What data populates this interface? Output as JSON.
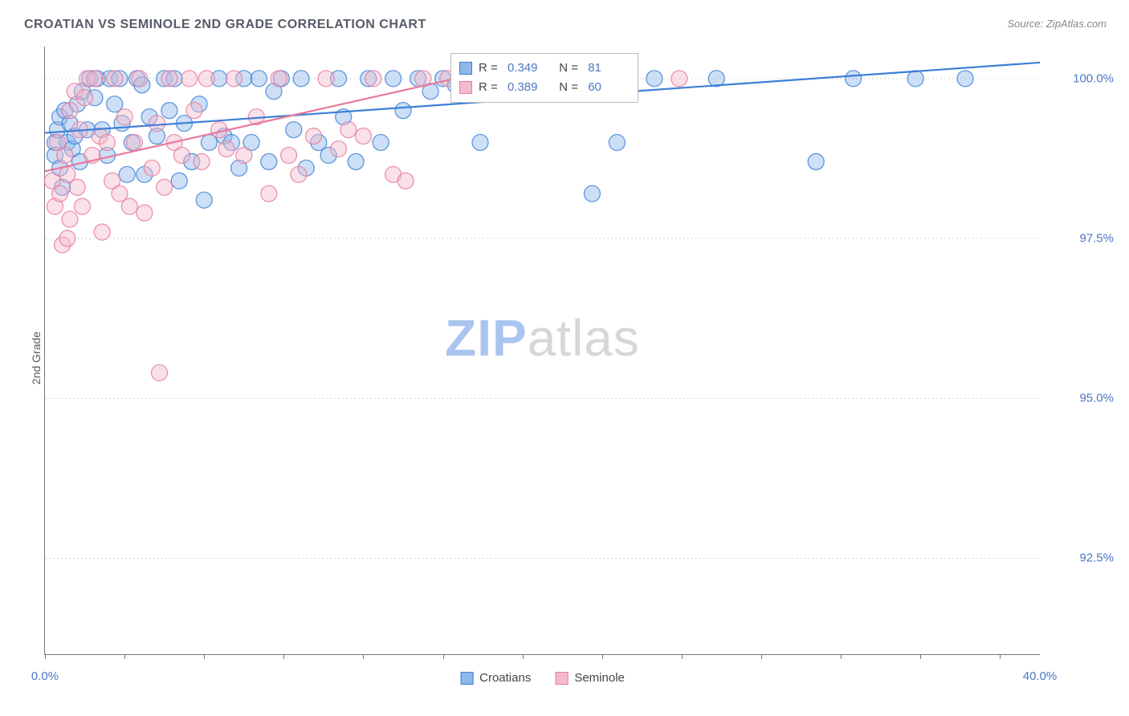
{
  "title": "CROATIAN VS SEMINOLE 2ND GRADE CORRELATION CHART",
  "source": "Source: ZipAtlas.com",
  "ylabel": "2nd Grade",
  "watermark": {
    "bold": "ZIP",
    "rest": "atlas",
    "bold_color": "#a9c5ef",
    "rest_color": "#d7d7d7"
  },
  "colors": {
    "blue_fill": "#8eb7ea",
    "blue_stroke": "#3d7fd6",
    "pink_fill": "#f4bacd",
    "pink_stroke": "#e77a9d",
    "axis_label": "#4b78c4",
    "grid": "#d6d6d6",
    "text": "#555c66"
  },
  "chart": {
    "type": "scatter",
    "xlim": [
      0,
      40
    ],
    "ylim": [
      91,
      100.5
    ],
    "xticks": [
      0,
      3.2,
      6.4,
      9.6,
      12.8,
      16,
      19.2,
      22.4,
      25.6,
      28.8,
      32,
      35.2,
      38.4
    ],
    "xtick_labels_shown": {
      "0": "0.0%",
      "40": "40.0%"
    },
    "yticks": [
      92.5,
      95.0,
      97.5,
      100.0
    ],
    "ytick_labels": [
      "92.5%",
      "95.0%",
      "97.5%",
      "100.0%"
    ],
    "marker_radius": 10,
    "marker_opacity": 0.45,
    "line_width": 2.2
  },
  "series": [
    {
      "name": "Croatians",
      "color_fill": "#8eb7ea",
      "color_stroke": "#3d7fd6",
      "R": "0.349",
      "N": "81",
      "regression": {
        "x0": 0,
        "y0": 99.15,
        "x1": 40,
        "y1": 100.25
      },
      "points": [
        [
          0.4,
          99.0
        ],
        [
          0.4,
          98.8
        ],
        [
          0.5,
          99.2
        ],
        [
          0.6,
          98.6
        ],
        [
          0.6,
          99.4
        ],
        [
          0.7,
          98.3
        ],
        [
          0.8,
          99.5
        ],
        [
          0.9,
          99.0
        ],
        [
          1.0,
          99.3
        ],
        [
          1.1,
          98.9
        ],
        [
          1.2,
          99.1
        ],
        [
          1.3,
          99.6
        ],
        [
          1.4,
          98.7
        ],
        [
          1.5,
          99.8
        ],
        [
          1.7,
          99.2
        ],
        [
          1.8,
          100.0
        ],
        [
          2.0,
          99.7
        ],
        [
          2.1,
          100.0
        ],
        [
          2.3,
          99.2
        ],
        [
          2.5,
          98.8
        ],
        [
          2.6,
          100.0
        ],
        [
          2.8,
          99.6
        ],
        [
          3.0,
          100.0
        ],
        [
          3.1,
          99.3
        ],
        [
          3.3,
          98.5
        ],
        [
          3.5,
          99.0
        ],
        [
          3.7,
          100.0
        ],
        [
          3.9,
          99.9
        ],
        [
          4.0,
          98.5
        ],
        [
          4.2,
          99.4
        ],
        [
          4.5,
          99.1
        ],
        [
          4.8,
          100.0
        ],
        [
          5.0,
          99.5
        ],
        [
          5.2,
          100.0
        ],
        [
          5.4,
          98.4
        ],
        [
          5.6,
          99.3
        ],
        [
          5.9,
          98.7
        ],
        [
          6.2,
          99.6
        ],
        [
          6.4,
          98.1
        ],
        [
          6.6,
          99.0
        ],
        [
          7.0,
          100.0
        ],
        [
          7.2,
          99.1
        ],
        [
          7.5,
          99.0
        ],
        [
          7.8,
          98.6
        ],
        [
          8.0,
          100.0
        ],
        [
          8.3,
          99.0
        ],
        [
          8.6,
          100.0
        ],
        [
          9.0,
          98.7
        ],
        [
          9.2,
          99.8
        ],
        [
          9.5,
          100.0
        ],
        [
          10.0,
          99.2
        ],
        [
          10.3,
          100.0
        ],
        [
          10.5,
          98.6
        ],
        [
          11.0,
          99.0
        ],
        [
          11.4,
          98.8
        ],
        [
          11.8,
          100.0
        ],
        [
          12.0,
          99.4
        ],
        [
          12.5,
          98.7
        ],
        [
          13.0,
          100.0
        ],
        [
          13.5,
          99.0
        ],
        [
          14.0,
          100.0
        ],
        [
          14.4,
          99.5
        ],
        [
          15.0,
          100.0
        ],
        [
          15.5,
          99.8
        ],
        [
          16.0,
          100.0
        ],
        [
          16.5,
          99.9
        ],
        [
          17.0,
          100.0
        ],
        [
          17.5,
          99.0
        ],
        [
          18.0,
          100.0
        ],
        [
          19.0,
          100.0
        ],
        [
          20.0,
          99.8
        ],
        [
          20.5,
          100.0
        ],
        [
          21.2,
          100.0
        ],
        [
          22.0,
          98.2
        ],
        [
          23.0,
          99.0
        ],
        [
          24.5,
          100.0
        ],
        [
          27.0,
          100.0
        ],
        [
          31.0,
          98.7
        ],
        [
          32.5,
          100.0
        ],
        [
          35.0,
          100.0
        ],
        [
          37.0,
          100.0
        ]
      ]
    },
    {
      "name": "Seminole",
      "color_fill": "#f4bacd",
      "color_stroke": "#e77a9d",
      "R": "0.389",
      "N": "60",
      "regression": {
        "x0": 0,
        "y0": 98.55,
        "x1": 16.5,
        "y1": 100.0
      },
      "points": [
        [
          0.3,
          98.4
        ],
        [
          0.4,
          98.0
        ],
        [
          0.5,
          99.0
        ],
        [
          0.6,
          98.2
        ],
        [
          0.7,
          97.4
        ],
        [
          0.8,
          98.8
        ],
        [
          0.9,
          98.5
        ],
        [
          1.0,
          99.5
        ],
        [
          1.0,
          97.8
        ],
        [
          1.2,
          99.8
        ],
        [
          1.3,
          98.3
        ],
        [
          1.4,
          99.2
        ],
        [
          1.5,
          98.0
        ],
        [
          1.6,
          99.7
        ],
        [
          1.7,
          100.0
        ],
        [
          1.9,
          98.8
        ],
        [
          2.0,
          100.0
        ],
        [
          2.2,
          99.1
        ],
        [
          2.3,
          97.6
        ],
        [
          2.5,
          99.0
        ],
        [
          2.7,
          98.4
        ],
        [
          2.8,
          100.0
        ],
        [
          3.0,
          98.2
        ],
        [
          3.2,
          99.4
        ],
        [
          3.4,
          98.0
        ],
        [
          3.6,
          99.0
        ],
        [
          3.8,
          100.0
        ],
        [
          4.0,
          97.9
        ],
        [
          4.3,
          98.6
        ],
        [
          4.5,
          99.3
        ],
        [
          4.8,
          98.3
        ],
        [
          5.0,
          100.0
        ],
        [
          5.2,
          99.0
        ],
        [
          5.5,
          98.8
        ],
        [
          5.8,
          100.0
        ],
        [
          6.0,
          99.5
        ],
        [
          6.3,
          98.7
        ],
        [
          6.5,
          100.0
        ],
        [
          7.0,
          99.2
        ],
        [
          7.3,
          98.9
        ],
        [
          7.6,
          100.0
        ],
        [
          8.0,
          98.8
        ],
        [
          8.5,
          99.4
        ],
        [
          9.0,
          98.2
        ],
        [
          9.4,
          100.0
        ],
        [
          9.8,
          98.8
        ],
        [
          10.2,
          98.5
        ],
        [
          10.8,
          99.1
        ],
        [
          11.3,
          100.0
        ],
        [
          11.8,
          98.9
        ],
        [
          12.2,
          99.2
        ],
        [
          12.8,
          99.1
        ],
        [
          13.2,
          100.0
        ],
        [
          14.0,
          98.5
        ],
        [
          14.5,
          98.4
        ],
        [
          15.2,
          100.0
        ],
        [
          4.6,
          95.4
        ],
        [
          0.9,
          97.5
        ],
        [
          25.5,
          100.0
        ],
        [
          16.2,
          100.0
        ]
      ]
    }
  ],
  "legend": {
    "croatians": "Croatians",
    "seminole": "Seminole"
  }
}
